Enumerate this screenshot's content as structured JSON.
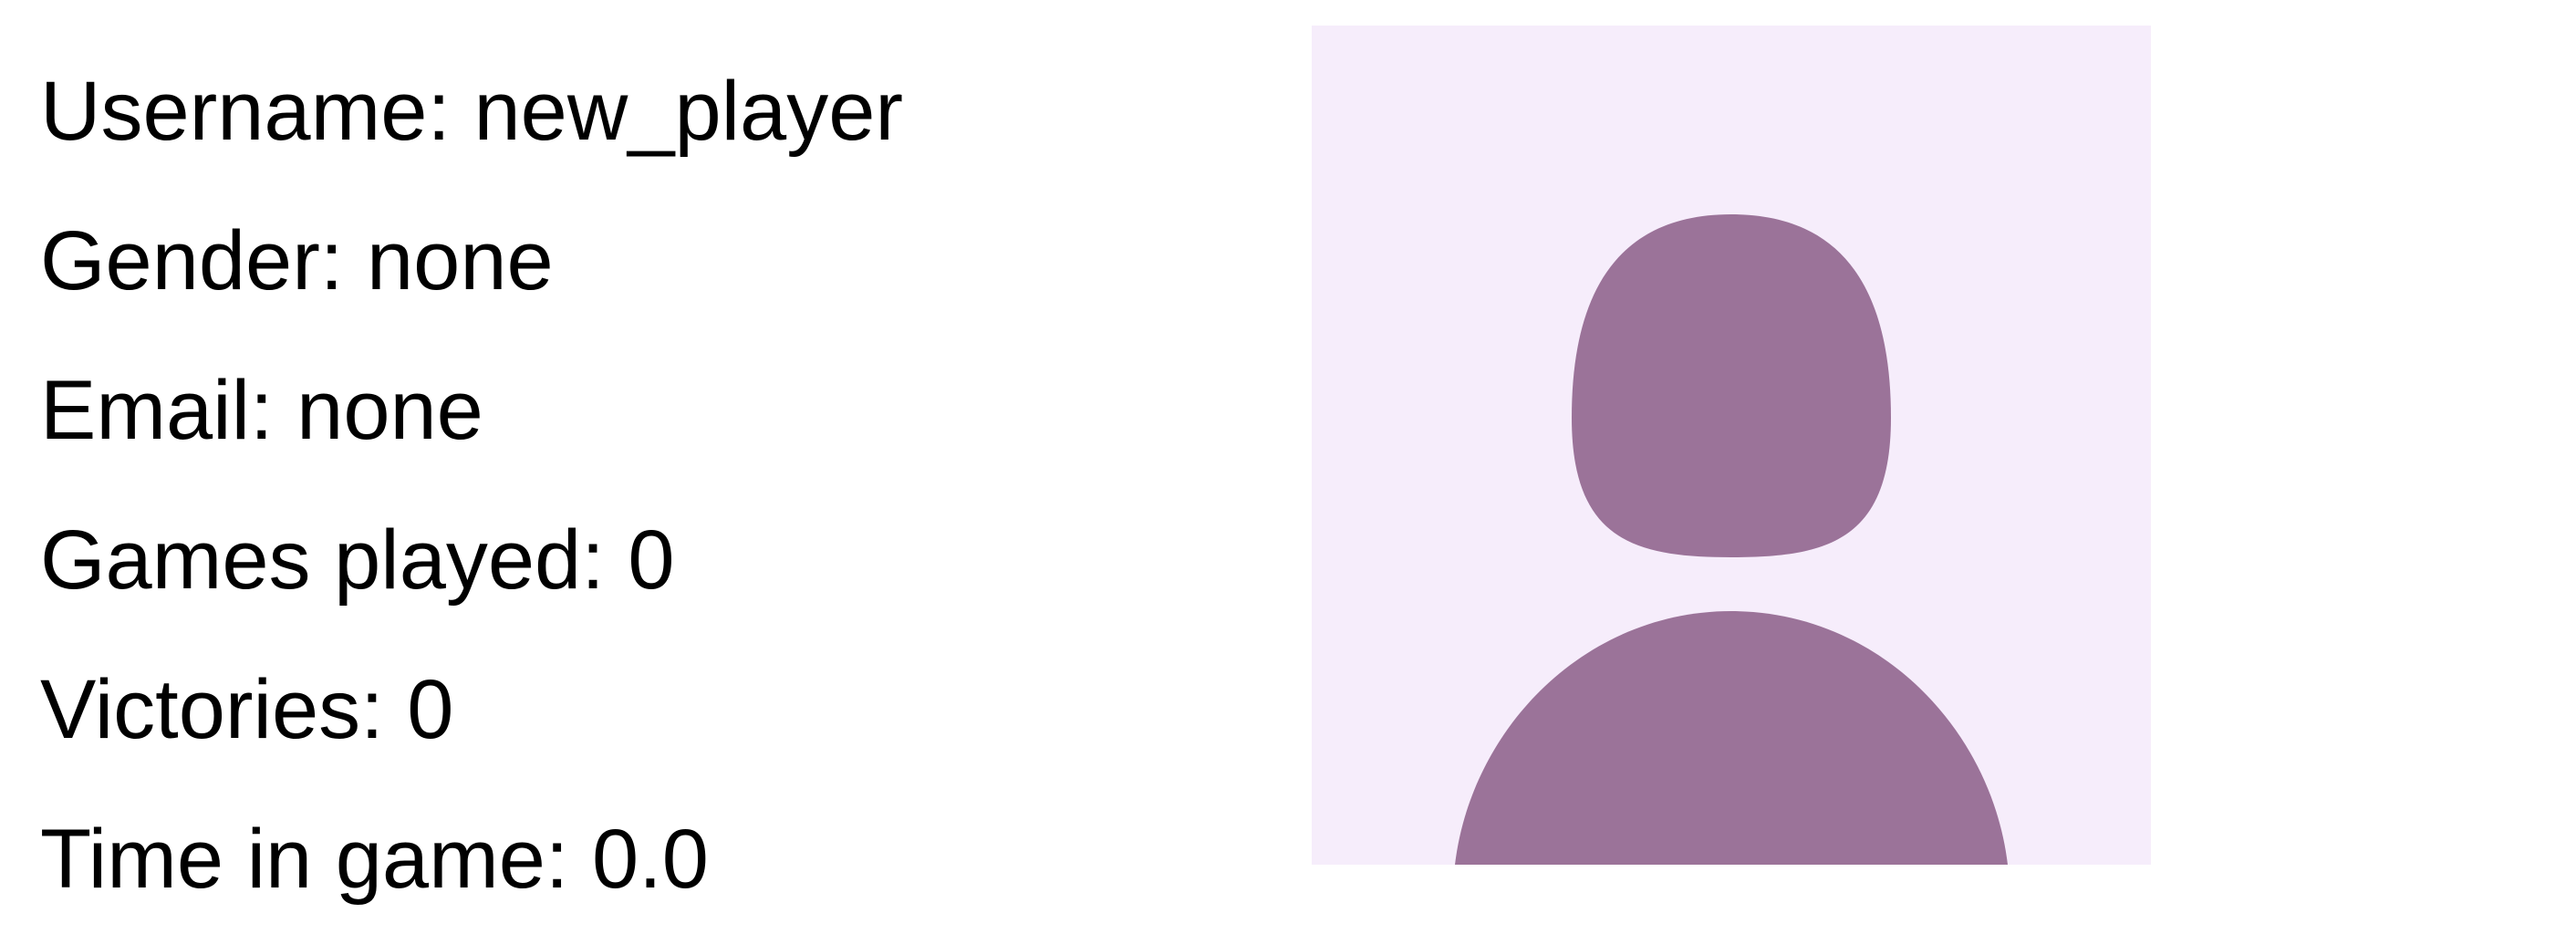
{
  "profile": {
    "fields": [
      {
        "label": "Username:",
        "value": "new_player"
      },
      {
        "label": "Gender:",
        "value": "none"
      },
      {
        "label": "Email:",
        "value": "none"
      },
      {
        "label": "Games played:",
        "value": "0"
      },
      {
        "label": "Victories:",
        "value": "0"
      },
      {
        "label": "Time in game:",
        "value": "0.0"
      }
    ],
    "avatar": {
      "icon": "default-user-silhouette-icon",
      "background_color": "#f6edfb",
      "figure_color": "#9b7399"
    }
  }
}
